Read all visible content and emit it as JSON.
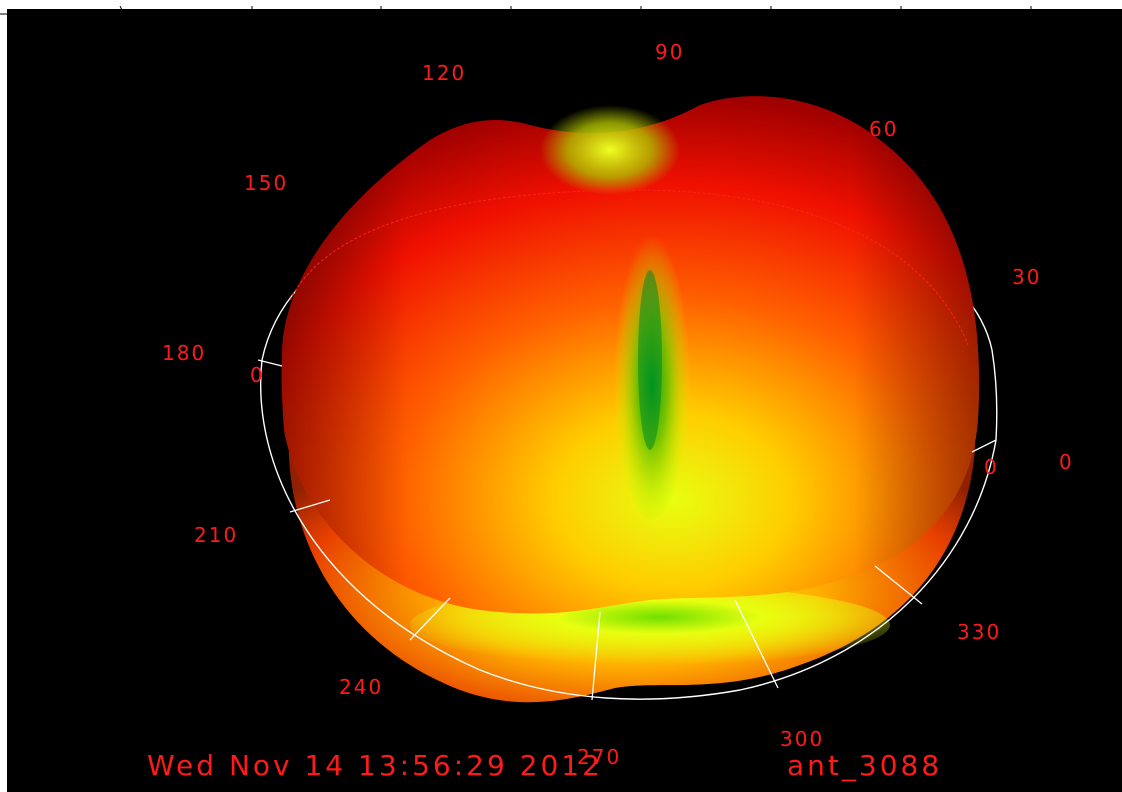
{
  "angle_labels": [
    "90",
    "120",
    "60",
    "150",
    "30",
    "180",
    "0",
    "0",
    "0",
    "210",
    "330",
    "240",
    "270",
    "300"
  ],
  "timestamp": "Wed Nov 14 13:56:29 2012",
  "antenna_name": "ant_3088",
  "colors": {
    "background": "#000000",
    "label": "#ff1a1a",
    "ring": "#ffffff",
    "pattern_high": "#ff0000",
    "pattern_mid": "#ffff00",
    "pattern_low": "#00a000"
  }
}
